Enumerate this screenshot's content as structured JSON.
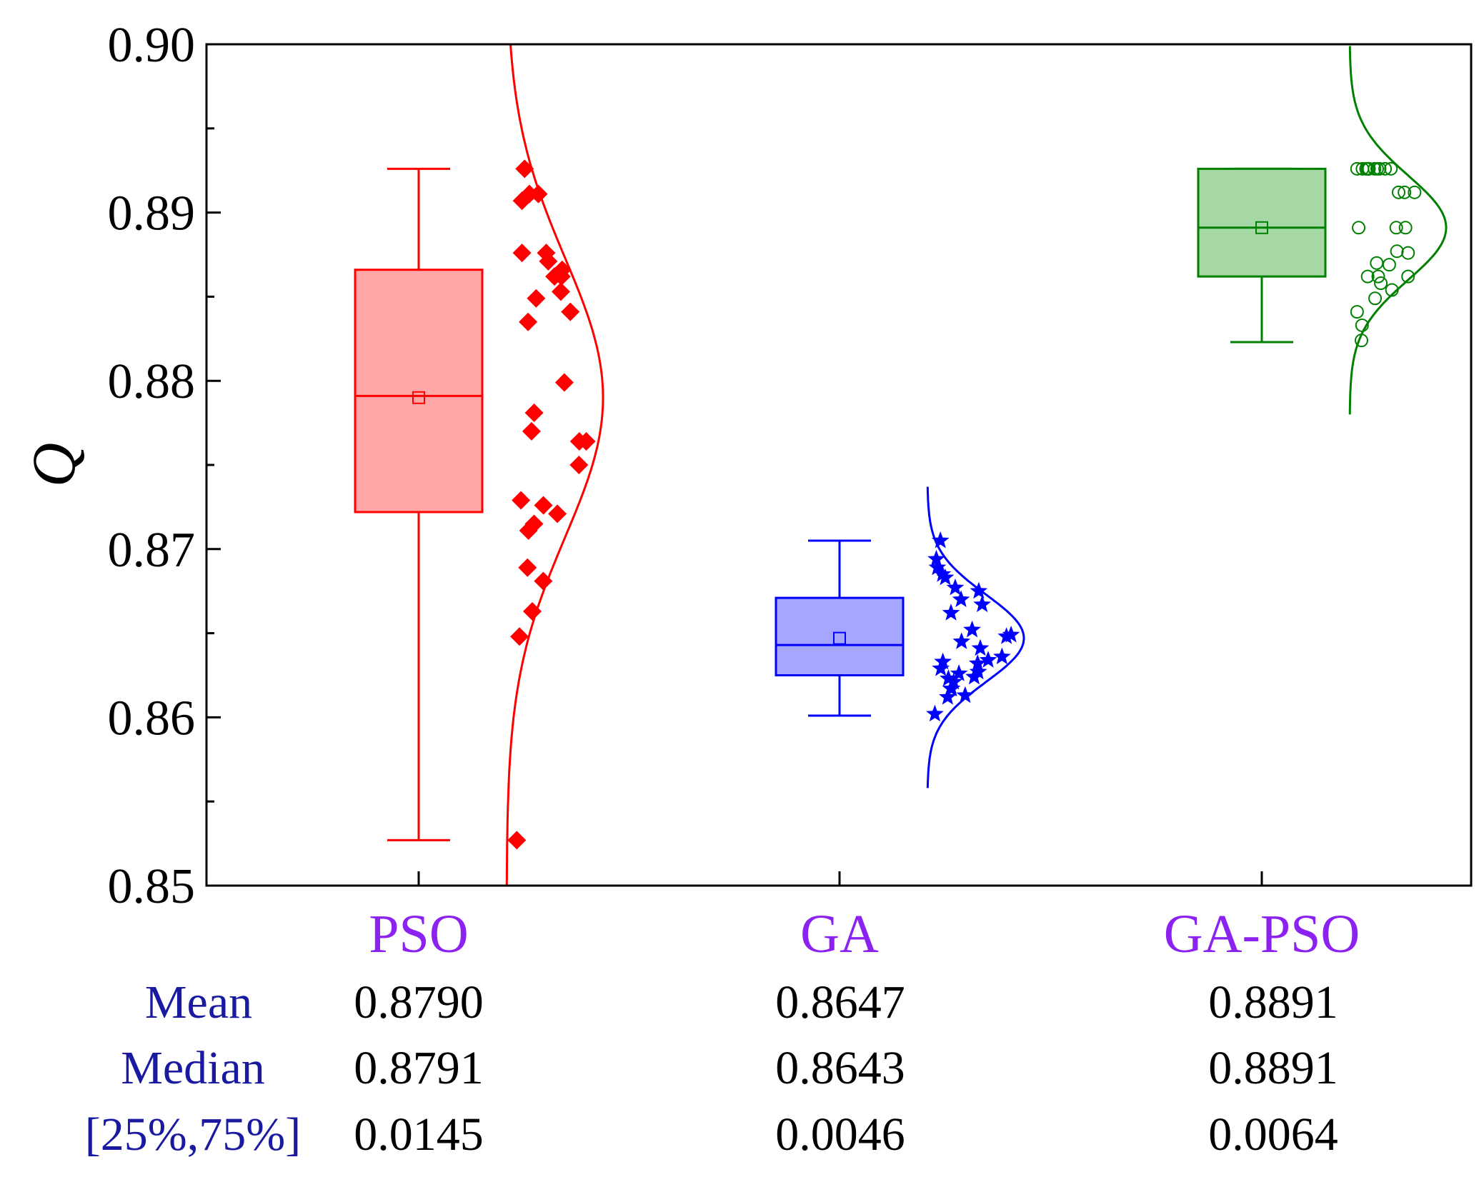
{
  "chart_data": {
    "type": "box",
    "title": "",
    "xlabel": "",
    "ylabel": "Q",
    "ylim": [
      0.85,
      0.9
    ],
    "yticks": [
      0.85,
      0.86,
      0.87,
      0.88,
      0.89,
      0.9
    ],
    "ytick_labels": [
      "0.85",
      "0.86",
      "0.87",
      "0.88",
      "0.89",
      "0.90"
    ],
    "categories": [
      "PSO",
      "GA",
      "GA-PSO"
    ],
    "series": [
      {
        "name": "PSO",
        "color": "#ff0000",
        "fill": "#ffa6a6",
        "marker": "diamond",
        "whisker_low": 0.8527,
        "q1": 0.8722,
        "median": 0.8791,
        "q3": 0.8866,
        "whisker_high": 0.8926,
        "mean": 0.879,
        "sd": 0.0083,
        "curve_range": [
          0.85,
          0.9
        ],
        "points": [
          0.8926,
          0.8907,
          0.8911,
          0.8911,
          0.8876,
          0.8871,
          0.8876,
          0.8866,
          0.8862,
          0.8862,
          0.8853,
          0.8849,
          0.8841,
          0.8835,
          0.8799,
          0.8781,
          0.877,
          0.8764,
          0.8764,
          0.875,
          0.8729,
          0.8726,
          0.8721,
          0.8715,
          0.8711,
          0.8689,
          0.8681,
          0.8663,
          0.8648,
          0.8527
        ]
      },
      {
        "name": "GA",
        "color": "#0000ff",
        "fill": "#a6a6ff",
        "marker": "star",
        "whisker_low": 0.8601,
        "q1": 0.8625,
        "median": 0.8643,
        "q3": 0.8671,
        "whisker_high": 0.8705,
        "mean": 0.8647,
        "sd": 0.0026,
        "curve_range": [
          0.8558,
          0.8737
        ],
        "points": [
          0.8705,
          0.8694,
          0.8689,
          0.8685,
          0.8683,
          0.8677,
          0.8675,
          0.867,
          0.8667,
          0.8662,
          0.8652,
          0.8649,
          0.8648,
          0.8645,
          0.8641,
          0.8636,
          0.8634,
          0.8633,
          0.8632,
          0.8629,
          0.8627,
          0.8626,
          0.8624,
          0.8623,
          0.8621,
          0.8617,
          0.8617,
          0.8613,
          0.8612,
          0.8602
        ]
      },
      {
        "name": "GA-PSO",
        "color": "#008000",
        "fill": "#a6d8a6",
        "marker": "circle-open",
        "whisker_low": 0.8823,
        "q1": 0.8862,
        "median": 0.8891,
        "q3": 0.8926,
        "whisker_high": 0.8926,
        "mean": 0.8891,
        "sd": 0.0031,
        "curve_range": [
          0.878,
          0.8999
        ],
        "points": [
          0.8926,
          0.8926,
          0.8926,
          0.8926,
          0.8926,
          0.8926,
          0.8926,
          0.8926,
          0.8926,
          0.8926,
          0.8926,
          0.8912,
          0.8912,
          0.8912,
          0.8891,
          0.8891,
          0.8891,
          0.8877,
          0.8876,
          0.887,
          0.8869,
          0.8862,
          0.8862,
          0.8858,
          0.8854,
          0.8849,
          0.8841,
          0.8833,
          0.8824,
          0.8862
        ]
      }
    ],
    "stats_table": {
      "rows": [
        "Mean",
        "Median",
        "[25%,75%]"
      ],
      "values": [
        [
          "0.8790",
          "0.8647",
          "0.8891"
        ],
        [
          "0.8791",
          "0.8643",
          "0.8891"
        ],
        [
          "0.0145",
          "0.0046",
          "0.0064"
        ]
      ]
    }
  }
}
